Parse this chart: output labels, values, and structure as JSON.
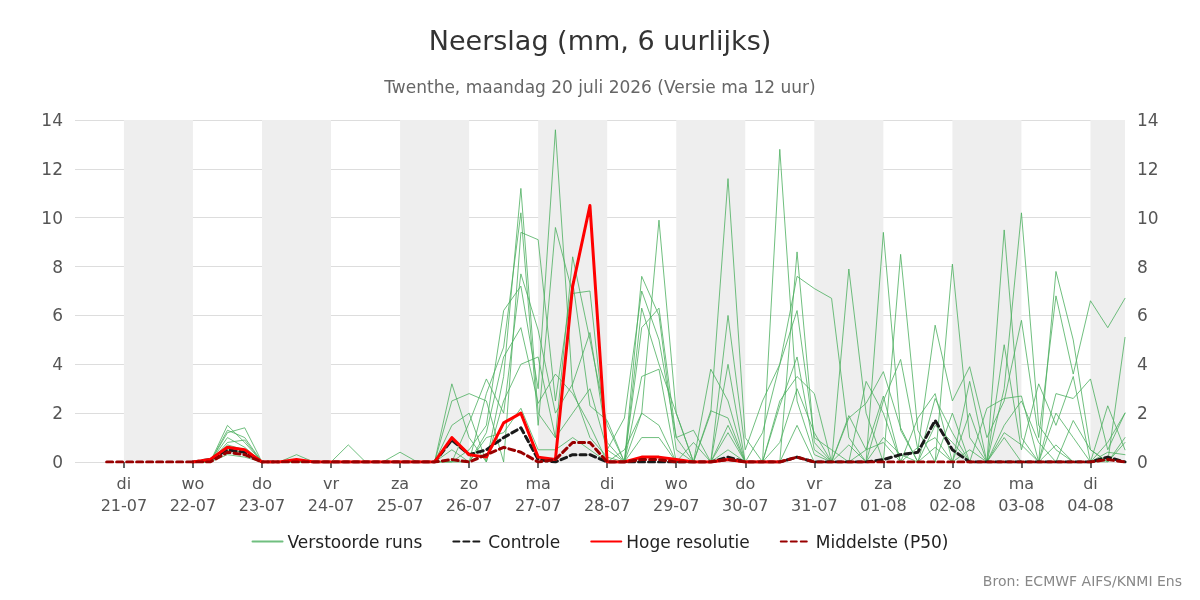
{
  "chart_data": {
    "type": "line",
    "title": "Neerslag (mm, 6 uurlijks)",
    "subtitle": "Twenthe, maandag 20 juli 2026 (Versie ma 12 uur)",
    "annotations": [
      "Bron: ECMWF AIFS/KNMI Ens"
    ],
    "x": [
      "2026-07-20T18:00",
      "2026-07-21T00:00",
      "2026-07-21T06:00",
      "2026-07-21T12:00",
      "2026-07-21T18:00",
      "2026-07-22T00:00",
      "2026-07-22T06:00",
      "2026-07-22T12:00",
      "2026-07-22T18:00",
      "2026-07-23T00:00",
      "2026-07-23T06:00",
      "2026-07-23T12:00",
      "2026-07-23T18:00",
      "2026-07-24T00:00",
      "2026-07-24T06:00",
      "2026-07-24T12:00",
      "2026-07-24T18:00",
      "2026-07-25T00:00",
      "2026-07-25T06:00",
      "2026-07-25T12:00",
      "2026-07-25T18:00",
      "2026-07-26T00:00",
      "2026-07-26T06:00",
      "2026-07-26T12:00",
      "2026-07-26T18:00",
      "2026-07-27T00:00",
      "2026-07-27T06:00",
      "2026-07-27T12:00",
      "2026-07-27T18:00",
      "2026-07-28T00:00",
      "2026-07-28T06:00",
      "2026-07-28T12:00",
      "2026-07-28T18:00",
      "2026-07-29T00:00",
      "2026-07-29T06:00",
      "2026-07-29T12:00",
      "2026-07-29T18:00",
      "2026-07-30T00:00",
      "2026-07-30T06:00",
      "2026-07-30T12:00",
      "2026-07-30T18:00",
      "2026-07-31T00:00",
      "2026-07-31T06:00",
      "2026-07-31T12:00",
      "2026-07-31T18:00",
      "2026-08-01T00:00",
      "2026-08-01T06:00",
      "2026-08-01T12:00",
      "2026-08-01T18:00",
      "2026-08-02T00:00",
      "2026-08-02T06:00",
      "2026-08-02T12:00",
      "2026-08-02T18:00",
      "2026-08-03T00:00",
      "2026-08-03T06:00",
      "2026-08-03T12:00",
      "2026-08-03T18:00",
      "2026-08-04T00:00",
      "2026-08-04T06:00",
      "2026-08-04T12:00"
    ],
    "series": [
      {
        "name": "Verstoorde runs",
        "color": "#4caf5f",
        "values": [
          null,
          null,
          null,
          null,
          null,
          0,
          0,
          1.5,
          0.8,
          0,
          0,
          0.3,
          0,
          0,
          0,
          0,
          0,
          0,
          0,
          0,
          0,
          0.5,
          1.5,
          6.2,
          7.2,
          3.0,
          13.6,
          3.0,
          1.0,
          0.2,
          0,
          2.0,
          9.9,
          2.0,
          0,
          0,
          0.5,
          0,
          0,
          12.8,
          2.5,
          0.3,
          0,
          0,
          0,
          9.4,
          1.3,
          0,
          0,
          2.0,
          0,
          0,
          3.0,
          10.2,
          1.5,
          0.5,
          0,
          0,
          0.8,
          2.0
        ]
      },
      {
        "color": "#4caf5f",
        "values": [
          null,
          null,
          null,
          null,
          null,
          0,
          0,
          1.2,
          1.4,
          0,
          0,
          0,
          0,
          0,
          0.7,
          0,
          0,
          0,
          0,
          0,
          3.2,
          1.0,
          0,
          3.5,
          11.2,
          2.0,
          1.0,
          8.4,
          5.0,
          1.5,
          0,
          7.6,
          6.0,
          0.5,
          0,
          2.0,
          11.6,
          1.0,
          0,
          0,
          8.6,
          0.8,
          0,
          7.9,
          2.0,
          0,
          8.5,
          1.3,
          0,
          8.1,
          1.0,
          0,
          9.5,
          1.0,
          0,
          7.8,
          5.0,
          0.5,
          0,
          5.1
        ]
      },
      {
        "color": "#4caf5f",
        "values": [
          null,
          null,
          null,
          null,
          null,
          0,
          0,
          1.0,
          0.6,
          0,
          0,
          0,
          0,
          0,
          0,
          0,
          0,
          0.4,
          0,
          0,
          0,
          0,
          2.8,
          4.7,
          10.2,
          1.5,
          9.6,
          6.9,
          7.0,
          0.5,
          1.8,
          7.0,
          5.0,
          1.0,
          0,
          0,
          6.0,
          0.5,
          2.5,
          4.0,
          7.6,
          7.1,
          6.7,
          1.0,
          0,
          2.5,
          4.2,
          0.5,
          5.6,
          2.5,
          3.9,
          1.0,
          2.5,
          5.8,
          1.0,
          6.8,
          3.6,
          6.6,
          5.5,
          6.7
        ]
      },
      {
        "color": "#4caf5f",
        "values": [
          null,
          null,
          null,
          null,
          null,
          0,
          0,
          0.8,
          0.9,
          0,
          0,
          0,
          0,
          0,
          0,
          0,
          0,
          0,
          0,
          0,
          2.5,
          2.8,
          2.5,
          0,
          9.4,
          9.1,
          2.5,
          7.4,
          2.3,
          1.7,
          0,
          6.3,
          4.0,
          2.0,
          0,
          3.8,
          2.5,
          0,
          1.2,
          4.0,
          6.2,
          1.0,
          0.5,
          0,
          3.3,
          2.0,
          0,
          1.8,
          2.8,
          0,
          3.3,
          0,
          4.8,
          0.5,
          3.2,
          1.5,
          3.5,
          0,
          2.3,
          0.5
        ]
      },
      {
        "color": "#4caf5f",
        "values": [
          null,
          null,
          null,
          null,
          null,
          0,
          0,
          0.5,
          0.4,
          0,
          0,
          0,
          0,
          0,
          0,
          0,
          0,
          0,
          0,
          0,
          0,
          1.6,
          3.4,
          2.0,
          7.7,
          5.4,
          2.0,
          3.2,
          5.3,
          0.8,
          0,
          5.5,
          6.3,
          1.0,
          1.3,
          0,
          4.0,
          0,
          0,
          2.5,
          3.5,
          2.8,
          0,
          1.8,
          2.4,
          3.7,
          1.4,
          0,
          2.6,
          1.2,
          0,
          2.2,
          2.6,
          2.7,
          0,
          2.8,
          2.6,
          3.4,
          0.5,
          2.0
        ]
      },
      {
        "color": "#4caf5f",
        "values": [
          null,
          null,
          null,
          null,
          null,
          0,
          0,
          1.3,
          1.0,
          0,
          0,
          0,
          0,
          0,
          0,
          0,
          0,
          0,
          0,
          0,
          0,
          0,
          1.2,
          4.3,
          5.5,
          2.4,
          3.6,
          2.8,
          1.5,
          0,
          0.5,
          2.0,
          1.5,
          0,
          0,
          2.1,
          1.8,
          0,
          0,
          2.3,
          4.3,
          0.5,
          0,
          1.9,
          0.5,
          2.7,
          0,
          0.6,
          1.0,
          0,
          2.0,
          0,
          1.5,
          2.5,
          0.8,
          0,
          1.7,
          0.5,
          0,
          0.8
        ]
      },
      {
        "color": "#4caf5f",
        "values": [
          null,
          null,
          null,
          null,
          null,
          0,
          0,
          0.7,
          0.5,
          0,
          0,
          0,
          0,
          0,
          0,
          0,
          0,
          0,
          0,
          0,
          1.5,
          2.0,
          0,
          2.5,
          4.0,
          4.3,
          1.0,
          2.0,
          3.0,
          0.5,
          0,
          3.5,
          3.8,
          0,
          0.8,
          0,
          1.5,
          0,
          0,
          0.8,
          3.0,
          1.2,
          0,
          0.7,
          0,
          1.0,
          0.3,
          0,
          1.5,
          0.8,
          0,
          0,
          1.2,
          0.7,
          0,
          2.0,
          1.0,
          0,
          0,
          1.0
        ]
      },
      {
        "color": "#4caf5f",
        "values": [
          null,
          null,
          null,
          null,
          null,
          0,
          0,
          0.3,
          0.2,
          0,
          0,
          0,
          0,
          0,
          0,
          0,
          0,
          0,
          0,
          0,
          0.5,
          0,
          1.0,
          1.2,
          2.2,
          0.5,
          0.5,
          1.0,
          0.5,
          0,
          0,
          1.0,
          1.0,
          0,
          0,
          0,
          1.2,
          0,
          0,
          0,
          1.5,
          0,
          0,
          0,
          0.5,
          0.8,
          0,
          0,
          0.6,
          0,
          0.5,
          0,
          1.0,
          0,
          0,
          0.7,
          0,
          0,
          0.4,
          0.3
        ]
      },
      {
        "name": "Controle",
        "color": "#1a1a1a",
        "line_style": "dashed",
        "values": [
          null,
          null,
          null,
          null,
          null,
          0,
          0.1,
          0.5,
          0.4,
          0,
          0,
          null,
          0,
          0,
          0,
          0,
          0,
          0,
          0,
          0,
          0.9,
          0.3,
          0.5,
          1.0,
          1.4,
          0.1,
          0,
          0.3,
          0.3,
          0,
          0,
          0,
          0,
          0,
          0,
          0,
          0.2,
          0,
          0,
          0,
          0.2,
          0,
          0,
          0,
          0,
          0.1,
          0.3,
          0.4,
          1.7,
          0.5,
          0,
          0,
          0,
          0,
          0,
          0,
          0,
          0,
          0.2,
          0
        ]
      },
      {
        "name": "Hoge resolutie",
        "color": "#ff0000",
        "line_style": "solid",
        "values": [
          null,
          null,
          null,
          null,
          null,
          0,
          0.1,
          0.6,
          0.5,
          0,
          0,
          0.1,
          0,
          0,
          0,
          0,
          0,
          0,
          0,
          0,
          1.0,
          0.3,
          0.2,
          1.6,
          2.0,
          0.2,
          0.1,
          7.2,
          10.5,
          0,
          0,
          0.2,
          0.2,
          0.1,
          0,
          0,
          0.1,
          0,
          0,
          0,
          null,
          null,
          null,
          null,
          null,
          null,
          null,
          null,
          null,
          null,
          null,
          null,
          null,
          null,
          null,
          null,
          null,
          null,
          null,
          null
        ]
      },
      {
        "name": "Middelste (P50)",
        "color": "#990000",
        "line_style": "dashed",
        "values": [
          0,
          0,
          0,
          0,
          0,
          0,
          0,
          0.4,
          0.3,
          0,
          0,
          0,
          0,
          0,
          0,
          0,
          0,
          0,
          0,
          0,
          0.1,
          0,
          0.3,
          0.6,
          0.4,
          0,
          0.1,
          0.8,
          0.8,
          0,
          0,
          0.1,
          0.1,
          0,
          0,
          0,
          0.1,
          0,
          0,
          0,
          0.2,
          0,
          0,
          0,
          0,
          0,
          0,
          0,
          0,
          0,
          0,
          0,
          0,
          0,
          0,
          0,
          0,
          0,
          0.1,
          0
        ]
      }
    ],
    "bands": [
      {
        "axis": "x",
        "from": "2026-07-21",
        "to": "2026-07-22",
        "color": "#eeeeee"
      },
      {
        "axis": "x",
        "from": "2026-07-23",
        "to": "2026-07-24",
        "color": "#eeeeee"
      },
      {
        "axis": "x",
        "from": "2026-07-25",
        "to": "2026-07-26",
        "color": "#eeeeee"
      },
      {
        "axis": "x",
        "from": "2026-07-27",
        "to": "2026-07-28",
        "color": "#eeeeee"
      },
      {
        "axis": "x",
        "from": "2026-07-29",
        "to": "2026-07-30",
        "color": "#eeeeee"
      },
      {
        "axis": "x",
        "from": "2026-07-31",
        "to": "2026-08-01",
        "color": "#eeeeee"
      },
      {
        "axis": "x",
        "from": "2026-08-02",
        "to": "2026-08-03",
        "color": "#eeeeee"
      },
      {
        "axis": "x",
        "from": "2026-08-04",
        "to": "2026-08-04T12:00",
        "color": "#eeeeee"
      }
    ],
    "xlim": [
      "2026-07-20T07:00",
      "2026-08-04T12:00"
    ],
    "xticks": [
      {
        "value": "2026-07-21",
        "label": "di\n21-07"
      },
      {
        "value": "2026-07-22",
        "label": "wo\n22-07"
      },
      {
        "value": "2026-07-23",
        "label": "do\n23-07"
      },
      {
        "value": "2026-07-24",
        "label": "vr\n24-07"
      },
      {
        "value": "2026-07-25",
        "label": "za\n25-07"
      },
      {
        "value": "2026-07-26",
        "label": "zo\n26-07"
      },
      {
        "value": "2026-07-27",
        "label": "ma\n27-07"
      },
      {
        "value": "2026-07-28",
        "label": "di\n28-07"
      },
      {
        "value": "2026-07-29",
        "label": "wo\n29-07"
      },
      {
        "value": "2026-07-30",
        "label": "do\n30-07"
      },
      {
        "value": "2026-07-31",
        "label": "vr\n31-07"
      },
      {
        "value": "2026-08-01",
        "label": "za\n01-08"
      },
      {
        "value": "2026-08-02",
        "label": "zo\n02-08"
      },
      {
        "value": "2026-08-03",
        "label": "ma\n03-08"
      },
      {
        "value": "2026-08-04",
        "label": "di\n04-08"
      }
    ],
    "ylim": [
      0,
      14
    ],
    "yticks": [
      0,
      2,
      4,
      6,
      8,
      10,
      12,
      14
    ],
    "y2lim": [
      0,
      14
    ],
    "y2ticks": [
      0,
      2,
      4,
      6,
      8,
      10,
      12,
      14
    ],
    "grid": "y",
    "legend": "bottom",
    "marker": "none"
  }
}
